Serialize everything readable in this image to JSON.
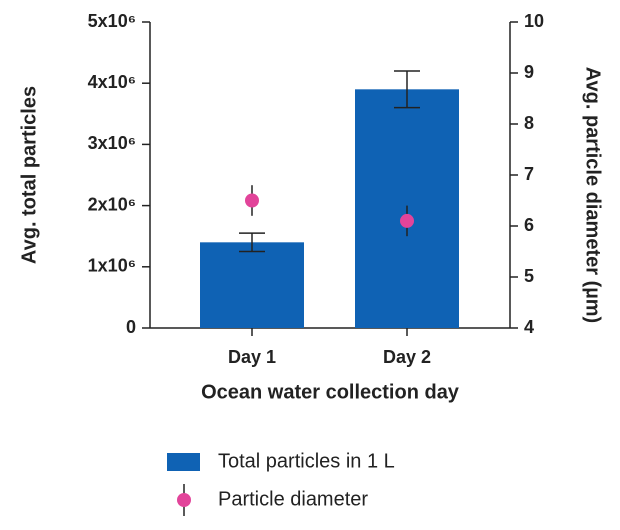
{
  "chart_data": {
    "type": "bar",
    "categories": [
      "Day 1",
      "Day 2"
    ],
    "xlabel": "Ocean water collection day",
    "ylabel": "Avg. total particles",
    "y2label": "Avg. particle diameter (µm)",
    "ylim": [
      0,
      5000000
    ],
    "yticks": [
      0,
      {
        "value": 1000000,
        "label": "1x10⁶"
      },
      {
        "value": 2000000,
        "label": "2x10⁶"
      },
      {
        "value": 3000000,
        "label": "3x10⁶"
      },
      {
        "value": 4000000,
        "label": "4x10⁶"
      },
      {
        "value": 5000000,
        "label": "5x10⁶"
      }
    ],
    "y2lim": [
      4,
      10
    ],
    "y2ticks": [
      4,
      5,
      6,
      7,
      8,
      9,
      10
    ],
    "series": [
      {
        "name": "Total particles in 1 L",
        "type": "bar",
        "color": "#0f62b4",
        "values": [
          1400000,
          3900000
        ],
        "errors": [
          150000,
          300000
        ]
      },
      {
        "name": "Particle diameter",
        "type": "scatter",
        "axis": "y2",
        "color": "#e2449a",
        "values": [
          6.5,
          6.1
        ],
        "errors": [
          0.3,
          0.3
        ]
      }
    ]
  }
}
